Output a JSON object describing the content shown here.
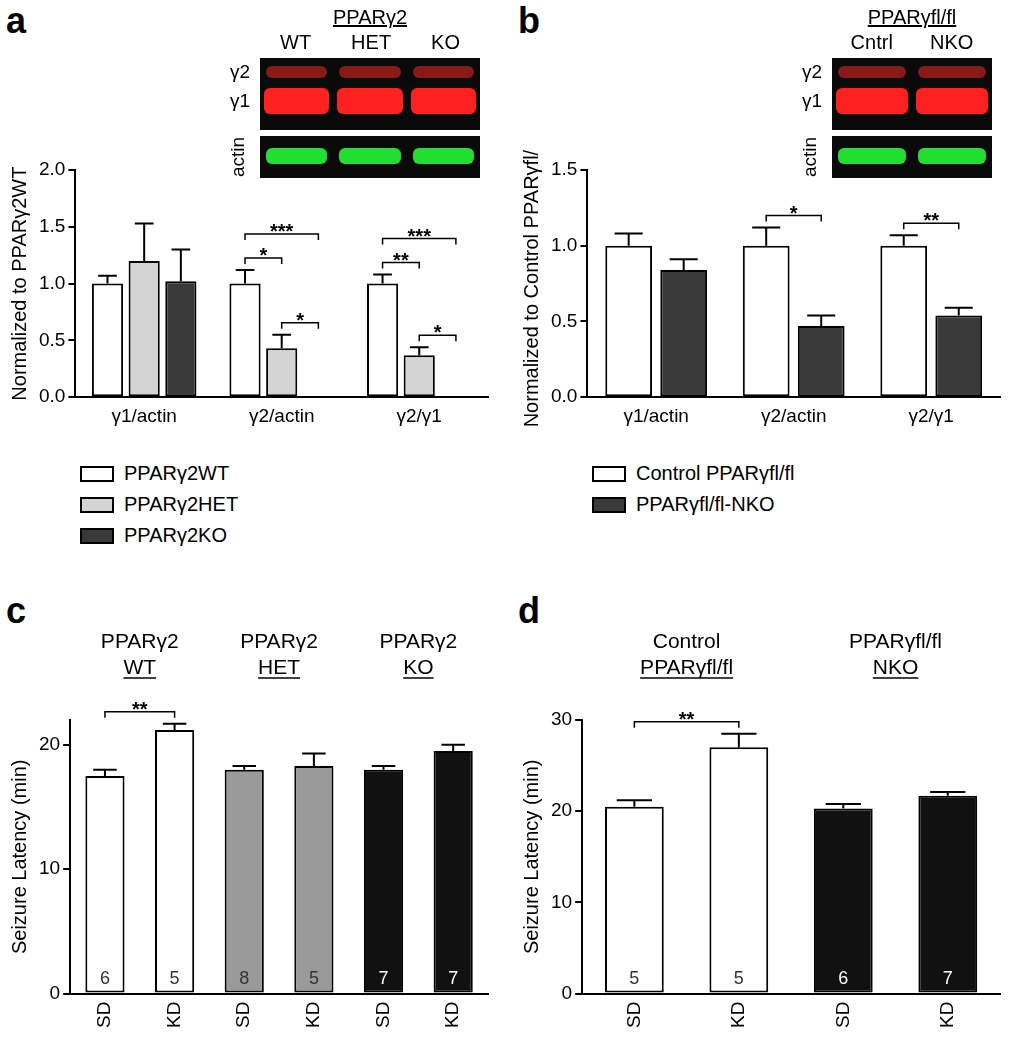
{
  "chart_data": [
    {
      "type": "bar",
      "panel_label": "a",
      "blot": {
        "title": "PPARγ2",
        "lanes": [
          "WT",
          "HET",
          "KO"
        ],
        "bands": [
          "γ2",
          "γ1",
          "actin"
        ]
      },
      "categories": [
        "γ1/actin",
        "γ2/actin",
        "γ2/γ1"
      ],
      "series": [
        {
          "name": "PPARγ2WT",
          "color": "#ffffff",
          "values": [
            1.0,
            1.0,
            1.0
          ],
          "errors": [
            0.07,
            0.12,
            0.08
          ]
        },
        {
          "name": "PPARγ2HET",
          "color": "#d4d4d4",
          "values": [
            1.2,
            0.43,
            0.37
          ],
          "errors": [
            0.33,
            0.12,
            0.07
          ]
        },
        {
          "name": "PPARγ2KO",
          "color": "#3a3a3a",
          "values": [
            1.02,
            0,
            0
          ],
          "errors": [
            0.28,
            null,
            null
          ]
        }
      ],
      "y_label": "Normalized to PPARγ2WT",
      "ylim": [
        0,
        2.0
      ],
      "yticks": [
        {
          "value": 0,
          "label": "0.0"
        },
        {
          "value": 0.5,
          "label": "0.5"
        },
        {
          "value": 1.0,
          "label": "1.0"
        },
        {
          "value": 1.5,
          "label": "1.5"
        },
        {
          "value": 2.0,
          "label": "2.0"
        }
      ],
      "grid": false,
      "legend": "bottom",
      "annotations": [
        {
          "category": 1,
          "from": 0,
          "to": 1,
          "label": "*"
        },
        {
          "category": 1,
          "from": 1,
          "to": 2,
          "label": "*"
        },
        {
          "category": 1,
          "from": 0,
          "to": 2,
          "label": "***"
        },
        {
          "category": 2,
          "from": 0,
          "to": 1,
          "label": "**"
        },
        {
          "category": 2,
          "from": 1,
          "to": 2,
          "label": "*"
        },
        {
          "category": 2,
          "from": 0,
          "to": 2,
          "label": "***"
        }
      ]
    },
    {
      "type": "bar",
      "panel_label": "b",
      "blot": {
        "title": "PPARγfl/fl",
        "lanes": [
          "Cntrl",
          "NKO"
        ],
        "bands": [
          "γ2",
          "γ1",
          "actin"
        ]
      },
      "categories": [
        "γ1/actin",
        "γ2/actin",
        "γ2/γ1"
      ],
      "series": [
        {
          "name": "Control PPARγfl/fl",
          "color": "#ffffff",
          "values": [
            1.0,
            1.0,
            1.0
          ],
          "errors": [
            0.08,
            0.12,
            0.07
          ]
        },
        {
          "name": "PPARγfl/fl-NKO",
          "color": "#3a3a3a",
          "values": [
            0.84,
            0.47,
            0.54
          ],
          "errors": [
            0.07,
            0.07,
            0.05
          ]
        }
      ],
      "y_label": "Normalized to Control PPARγfl/fl",
      "ylim": [
        0,
        1.5
      ],
      "yticks": [
        {
          "value": 0,
          "label": "0.0"
        },
        {
          "value": 0.5,
          "label": "0.5"
        },
        {
          "value": 1.0,
          "label": "1.0"
        },
        {
          "value": 1.5,
          "label": "1.5"
        }
      ],
      "grid": false,
      "legend": "bottom",
      "annotations": [
        {
          "category": 1,
          "from": 0,
          "to": 1,
          "label": "*"
        },
        {
          "category": 2,
          "from": 0,
          "to": 1,
          "label": "**"
        }
      ]
    },
    {
      "type": "bar",
      "panel_label": "c",
      "groups": [
        {
          "title": "PPARγ2",
          "subtitle": "WT",
          "size": 2
        },
        {
          "title": "PPARγ2",
          "subtitle": "HET",
          "size": 2
        },
        {
          "title": "PPARγ2",
          "subtitle": "KO",
          "size": 2
        }
      ],
      "categories": [
        "SD",
        "KD",
        "SD",
        "KD",
        "SD",
        "KD"
      ],
      "values": [
        17.5,
        21.2,
        18.0,
        18.3,
        18.0,
        19.5
      ],
      "errors": [
        0.5,
        0.5,
        0.3,
        1.0,
        0.3,
        0.5
      ],
      "n": [
        6,
        5,
        8,
        5,
        7,
        7
      ],
      "colors": [
        "#ffffff",
        "#ffffff",
        "#9a9a9a",
        "#9a9a9a",
        "#111111",
        "#111111"
      ],
      "y_label": "Seizure Latency (min)",
      "ylim": [
        0,
        22
      ],
      "yticks": [
        0,
        10,
        20
      ],
      "grid": false,
      "annotations": [
        {
          "from": 0,
          "to": 1,
          "label": "**"
        }
      ]
    },
    {
      "type": "bar",
      "panel_label": "d",
      "groups": [
        {
          "title": "Control",
          "subtitle": "PPARγfl/fl",
          "size": 2
        },
        {
          "title": "PPARγfl/fl",
          "subtitle": "NKO",
          "size": 2
        }
      ],
      "categories": [
        "SD",
        "KD",
        "SD",
        "KD"
      ],
      "values": [
        20.5,
        27.0,
        20.3,
        21.7
      ],
      "errors": [
        0.7,
        1.5,
        0.5,
        0.4
      ],
      "n": [
        5,
        5,
        6,
        7
      ],
      "colors": [
        "#ffffff",
        "#ffffff",
        "#111111",
        "#111111"
      ],
      "y_label": "Seizure Latency (min)",
      "ylim": [
        0,
        30
      ],
      "yticks": [
        0,
        10,
        20,
        30
      ],
      "grid": false,
      "annotations": [
        {
          "from": 0,
          "to": 1,
          "label": "**"
        }
      ]
    }
  ]
}
